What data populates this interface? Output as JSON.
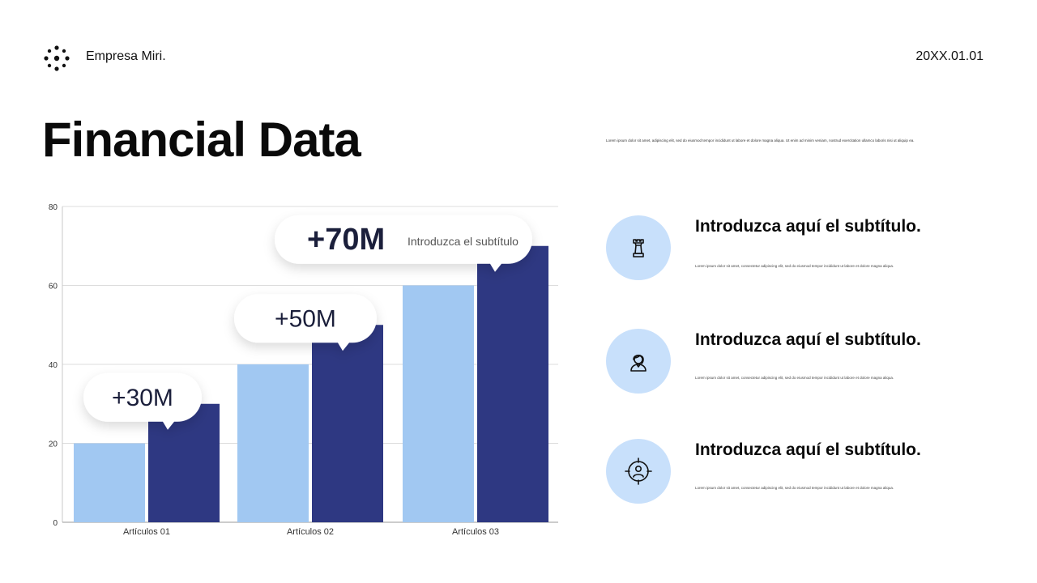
{
  "header": {
    "brand": "Empresa Miri.",
    "date": "20XX.01.01",
    "logo_icon": "flower-dots-logo"
  },
  "title": "Financial Data",
  "lead_text": "Lorem ipsum dolor sit amet, adipiscing elit, sed do eiusmod tempor incididunt ut labore et dolore magna aliqua. Ut enim ad minim veniam, nostrud exercitation ullamco laboris nisi ut aliquip ea.",
  "colors": {
    "light_bar": "#a1c8f2",
    "dark_bar": "#2e3882",
    "icon_circle": "#c8e0fb"
  },
  "features": [
    {
      "icon": "chess-rook-icon",
      "title": "Introduzca aquí el subtítulo.",
      "text": "Lorem ipsum dolor sit amet, consectetur adipiscing elit, sed do eiusmod tempor incididunt ut labore et dolore magna aliqua."
    },
    {
      "icon": "person-icon",
      "title": "Introduzca aquí el subtítulo.",
      "text": "Lorem ipsum dolor sit amet, consectetur adipiscing elit, sed do eiusmod tempor incididunt ut labore et dolore magna aliqua."
    },
    {
      "icon": "target-person-icon",
      "title": "Introduzca aquí el subtítulo.",
      "text": "Lorem ipsum dolor sit amet, consectetur adipiscing elit, sed do eiusmod tempor incididunt ut labore et dolore magna aliqua."
    }
  ],
  "chart_data": {
    "type": "bar",
    "categories": [
      "Artículos 01",
      "Artículos 02",
      "Artículos 03"
    ],
    "series": [
      {
        "values": [
          20,
          40,
          60
        ],
        "color": "#a1c8f2"
      },
      {
        "values": [
          30,
          50,
          70
        ],
        "color": "#2e3882"
      }
    ],
    "ylim": [
      0,
      80
    ],
    "yticks": [
      0,
      20,
      40,
      60,
      80
    ],
    "grid": true,
    "callouts": [
      {
        "category": "Artículos 01",
        "label": "+30M",
        "subtitle": ""
      },
      {
        "category": "Artículos 02",
        "label": "+50M",
        "subtitle": ""
      },
      {
        "category": "Artículos 03",
        "label": "+70M",
        "subtitle": "Introduzca el subtítulo"
      }
    ]
  }
}
